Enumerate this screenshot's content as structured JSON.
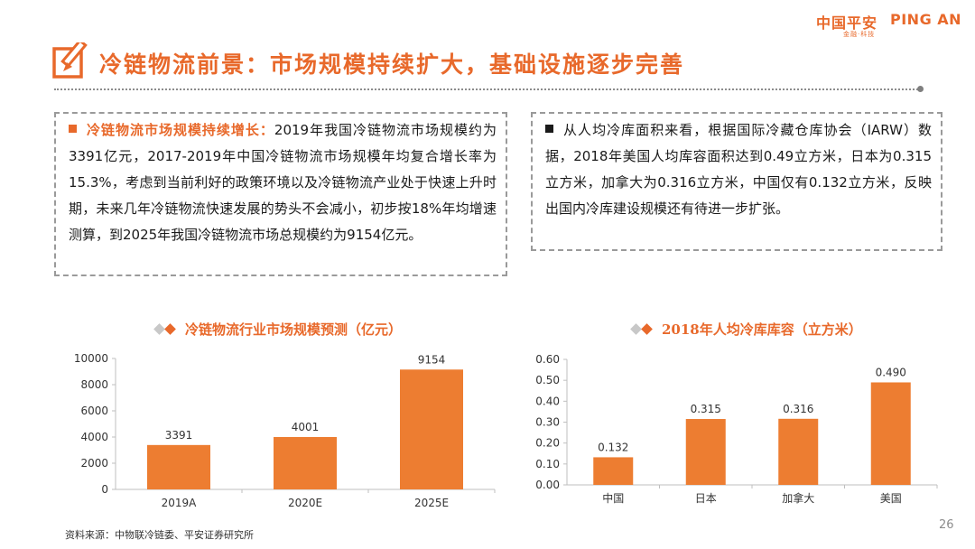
{
  "header": {
    "logo_cn": "中国平安",
    "logo_en": "PING AN",
    "logo_sub": "金融·科技",
    "title": "冷链物流前景：市场规模持续扩大，基础设施逐步完善",
    "title_icon": "pencil-edit-icon"
  },
  "left_box": {
    "lead": "冷链物流市场规模持续增长：",
    "text": "2019年我国冷链物流市场规模约为3391亿元，2017-2019年中国冷链物流市场规模年均复合增长率为15.3%，考虑到当前利好的政策环境以及冷链物流产业处于快速上升时期，未来几年冷链物流快速发展的势头不会减小，初步按18%年均增速测算，到2025年我国冷链物流市场总规模约为9154亿元。"
  },
  "right_box": {
    "text": "从人均冷库面积来看，根据国际冷藏仓库协会（IARW）数据，2018年美国人均库容面积达到0.49立方米，日本为0.315立方米，加拿大为0.316立方米，中国仅有0.132立方米，反映出国内冷库建设规模还有待进一步扩张。"
  },
  "chart_data": [
    {
      "type": "bar",
      "title": "冷链物流行业市场规模预测（亿元）",
      "categories": [
        "2019A",
        "2020E",
        "2025E"
      ],
      "values": [
        3391,
        4001,
        9154
      ],
      "value_labels": [
        "3391",
        "4001",
        "9154"
      ],
      "yticks": [
        "0",
        "2000",
        "4000",
        "6000",
        "8000",
        "10000"
      ],
      "ylim": [
        0,
        10000
      ],
      "color": "#ed7d31",
      "grid": false,
      "legend": "none"
    },
    {
      "type": "bar",
      "title": "2018年人均冷库库容（立方米）",
      "categories": [
        "中国",
        "日本",
        "加拿大",
        "美国"
      ],
      "values": [
        0.132,
        0.315,
        0.316,
        0.49
      ],
      "value_labels": [
        "0.132",
        "0.315",
        "0.316",
        "0.490"
      ],
      "yticks": [
        "0.00",
        "0.10",
        "0.20",
        "0.30",
        "0.40",
        "0.50",
        "0.60"
      ],
      "ylim": [
        0,
        0.6
      ],
      "color": "#ed7d31",
      "grid": false,
      "legend": "none"
    }
  ],
  "footer": {
    "source": "资料来源：中物联冷链委、平安证券研究所",
    "page_number": "26"
  },
  "colors": {
    "accent": "#e8692b",
    "bar": "#ed7d31",
    "bullet_left": "#e8692b",
    "bullet_right": "#1a1a1a"
  }
}
